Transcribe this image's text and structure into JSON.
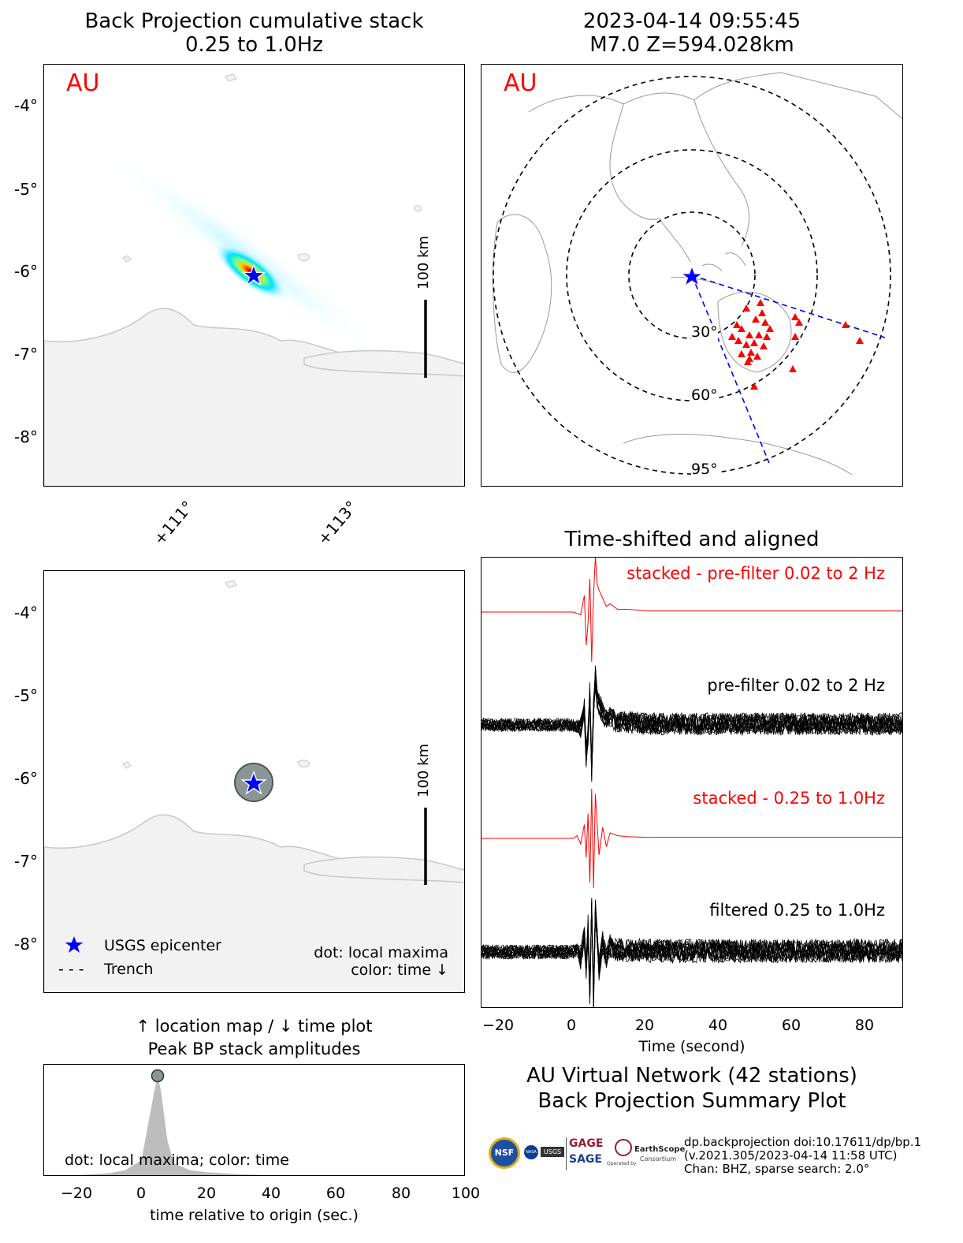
{
  "top_left": {
    "title_line1": "Back Projection cumulative stack",
    "title_line2": "0.25 to 1.0Hz",
    "network": "AU",
    "scale_label": "100 km",
    "y_ticks": [
      "-4°",
      "-5°",
      "-6°",
      "-7°",
      "-8°"
    ],
    "x_ticks": [
      "+111°",
      "+113°"
    ]
  },
  "top_right": {
    "title_line1": "2023-04-14 09:55:45",
    "title_line2": "M7.0 Z=594.028km",
    "network": "AU",
    "ring_labels": [
      "30°",
      "60°",
      "95°"
    ]
  },
  "mid_left": {
    "scale_label": "100 km",
    "y_ticks": [
      "-4°",
      "-5°",
      "-6°",
      "-7°",
      "-8°"
    ],
    "legend_epicenter": "USGS epicenter",
    "legend_trench": "Trench",
    "legend_trench_symbol": "- - -",
    "note_line1": "dot: local maxima",
    "note_line2": "color: time ↓"
  },
  "waveforms": {
    "title": "Time-shifted and aligned",
    "label_stacked_prefilter": "stacked - pre-filter 0.02 to 2 Hz",
    "label_prefilter": "pre-filter 0.02 to 2 Hz",
    "label_stacked_filtered": "stacked - 0.25 to 1.0Hz",
    "label_filtered": "filtered 0.25 to 1.0Hz",
    "x_ticks": [
      "−20",
      "0",
      "20",
      "40",
      "60",
      "80"
    ],
    "xlabel": "Time (second)"
  },
  "bottom_left": {
    "title_line1": "↑ location map / ↓ time plot",
    "title_line2": "Peak BP stack amplitudes",
    "note": "dot: local maxima; color: time",
    "x_ticks": [
      "−20",
      "0",
      "20",
      "40",
      "60",
      "80",
      "100"
    ],
    "xlabel": "time relative to origin (sec.)"
  },
  "summary": {
    "line1": "AU Virtual Network (42 stations)",
    "line2": "Back Projection Summary Plot",
    "info1": "dp.backprojection doi:10.17611/dp/bp.1",
    "info2": "(v.2021.305/2023-04-14 11:58 UTC)",
    "info3": "Chan: BHZ, sparse search: 2.0°",
    "logo_nsf": "NSF",
    "logo_nasa": "NASA",
    "logo_usgs": "USGS",
    "logo_gage": "GAGE",
    "logo_sage": "SAGE",
    "logo_operated": "Operated by",
    "logo_earthscope": "EarthScope",
    "logo_consortium": "Consortium"
  },
  "colors": {
    "accent_red": "#ff0000",
    "epicenter_blue": "#0000ff",
    "land_gray": "#f2f2f2",
    "coast_gray": "#c8c8c8",
    "peak_fill": "#bdbdbd"
  },
  "chart_data": [
    {
      "type": "line",
      "name": "stacked - pre-filter 0.02 to 2 Hz",
      "x_range": [
        -25,
        90
      ],
      "x": [
        -25,
        0,
        2,
        3,
        3.5,
        4,
        4.5,
        5,
        5.5,
        6,
        6.5,
        7,
        8,
        9,
        10,
        12,
        15,
        20,
        40,
        60,
        90
      ],
      "values": [
        0,
        0,
        -0.05,
        0.3,
        -0.6,
        -0.2,
        0.6,
        -0.9,
        0.3,
        1.0,
        0.5,
        0.4,
        0.25,
        0.1,
        0.15,
        0.05,
        0.05,
        0.02,
        0.02,
        0.02,
        0.02
      ]
    },
    {
      "type": "line",
      "name": "stacked - 0.25 to 1.0Hz",
      "x_range": [
        -25,
        90
      ],
      "x": [
        -25,
        0,
        1,
        2,
        3,
        3.5,
        4,
        4.5,
        5,
        5.5,
        6,
        7,
        8,
        9,
        10,
        12,
        15,
        20,
        40,
        90
      ],
      "values": [
        0,
        0,
        0.05,
        -0.1,
        0.25,
        -0.35,
        0.45,
        -0.8,
        0.9,
        -0.9,
        0.8,
        -0.3,
        0.2,
        -0.15,
        0.1,
        0.05,
        0.03,
        0.02,
        0.02,
        0.02
      ]
    },
    {
      "type": "area",
      "name": "Peak BP stack amplitudes",
      "x_range": [
        -30,
        100
      ],
      "x": [
        -20,
        -10,
        -5,
        0,
        2,
        4,
        5,
        6,
        8,
        10,
        15,
        20,
        30,
        40
      ],
      "values": [
        0,
        0.02,
        0.05,
        0.15,
        0.5,
        0.85,
        1.0,
        0.85,
        0.35,
        0.12,
        0.05,
        0.03,
        0.01,
        0
      ],
      "peak": {
        "x": 5,
        "y": 1.0
      }
    }
  ]
}
